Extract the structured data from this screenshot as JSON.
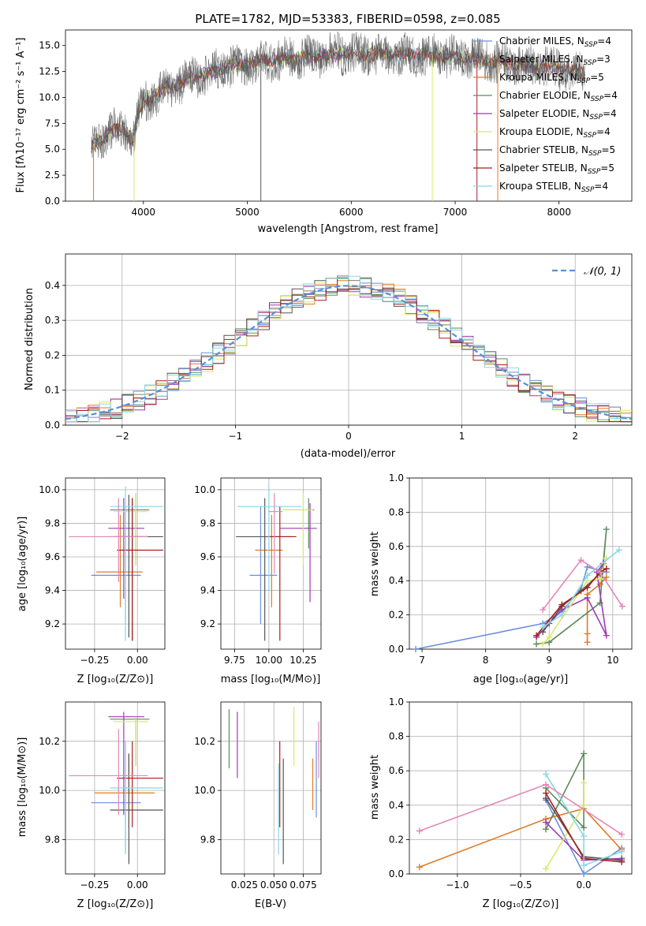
{
  "colors": {
    "cm": "#6a8fdc",
    "sm": "#7f7f7f",
    "km": "#e07b25",
    "ce": "#5c8a5c",
    "se": "#a13ab2",
    "ke": "#d8e96a",
    "cs": "#555555",
    "ss": "#a81f1f",
    "ks": "#87d7e6",
    "pink": "#e486b7"
  },
  "top": {
    "title": "PLATE=1782, MJD=53383, FIBERID=0598, z=0.085",
    "xlabel": "wavelength [Angstrom, rest frame]",
    "ylabel": "Flux [fλ10⁻¹⁷ erg cm⁻² s⁻¹ A⁻¹]",
    "legend": [
      "Chabrier MILES, N_SSP=4",
      "Salpeter MILES, N_SSP=3",
      "Kroupa MILES, N_SSP=5",
      "Chabrier ELODIE, N_SSP=4",
      "Salpeter ELODIE, N_SSP=4",
      "Kroupa ELODIE, N_SSP=4",
      "Chabrier STELIB, N_SSP=5",
      "Salpeter STELIB, N_SSP=5",
      "Kroupa STELIB, N_SSP=4"
    ]
  },
  "hist": {
    "xlabel": "(data-model)/error",
    "ylabel": "Normed distribution",
    "legend": "𝒩(0, 1)"
  },
  "panels": {
    "age_label": "age  [log₁₀(age/yr)]",
    "z_label": "Z [log₁₀(Z/Z⊙)]",
    "mass_label": "mass [log₁₀(M/M⊙)]",
    "ebv_label": "E(B-V)",
    "mw_label": "mass weight",
    "age_xlabel": "age  [log₁₀(age/yr)]"
  },
  "chart_data": [
    {
      "type": "line",
      "title": "PLATE=1782, MJD=53383, FIBERID=0598, z=0.085",
      "xlim": [
        3250,
        8700
      ],
      "ylim": [
        0,
        16.5
      ],
      "xticks": [
        4000,
        5000,
        6000,
        7000,
        8000
      ],
      "yticks": [
        0.0,
        2.5,
        5.0,
        7.5,
        10.0,
        12.5,
        15.0
      ],
      "continuum": {
        "x": [
          3500,
          3600,
          3700,
          3800,
          3900,
          3950,
          4000,
          4100,
          4300,
          4500,
          4800,
          5000,
          5200,
          5500,
          5800,
          6000,
          6300,
          6600,
          6900,
          7200,
          7500,
          7800,
          8100,
          8250
        ],
        "y": [
          5.2,
          6.0,
          6.8,
          7.0,
          5.8,
          8.5,
          9.5,
          10.2,
          11.2,
          12.0,
          12.9,
          13.3,
          13.6,
          13.8,
          14.1,
          14.2,
          14.2,
          14.1,
          14.0,
          13.7,
          13.3,
          13.0,
          12.7,
          12.3
        ]
      }
    },
    {
      "type": "bar",
      "title": "",
      "xlim": [
        -2.5,
        2.5
      ],
      "ylim": [
        0,
        0.49
      ],
      "xticks": [
        -2,
        -1,
        0,
        1,
        2
      ],
      "yticks": [
        0.0,
        0.1,
        0.2,
        0.3,
        0.4
      ],
      "gaussian": {
        "mean": 0,
        "sigma": 1
      }
    },
    {
      "type": "scatter",
      "title": "",
      "xlim": [
        -0.42,
        0.16
      ],
      "ylim": [
        9.05,
        10.07
      ],
      "xticks": [
        -0.25,
        0.0
      ],
      "yticks": [
        9.2,
        9.4,
        9.6,
        9.8,
        10.0
      ],
      "points": [
        {
          "c": "cm",
          "x": -0.07,
          "y": 9.49,
          "ex": [
            -0.27,
            0.02
          ],
          "ey": [
            9.2,
            9.9
          ]
        },
        {
          "c": "sm",
          "x": -0.03,
          "y": 9.72,
          "ex": [
            -0.13,
            0.06
          ],
          "ey": [
            9.1,
            9.95
          ]
        },
        {
          "c": "km",
          "x": -0.1,
          "y": 9.51,
          "ex": [
            -0.24,
            0.03
          ],
          "ey": [
            9.3,
            9.85
          ]
        },
        {
          "c": "ce",
          "x": -0.01,
          "y": 9.88,
          "ex": [
            -0.16,
            0.07
          ],
          "ey": [
            9.55,
            9.98
          ]
        },
        {
          "c": "se",
          "x": -0.08,
          "y": 9.77,
          "ex": [
            -0.17,
            0.04
          ],
          "ey": [
            9.35,
            9.95
          ]
        },
        {
          "c": "ke",
          "x": -0.01,
          "y": 9.87,
          "ex": [
            -0.14,
            0.06
          ],
          "ey": [
            9.55,
            9.98
          ]
        },
        {
          "c": "cs",
          "x": -0.05,
          "y": 9.72,
          "ex": [
            -0.16,
            0.15
          ],
          "ey": [
            9.12,
            9.97
          ]
        },
        {
          "c": "ss",
          "x": -0.03,
          "y": 9.64,
          "ex": [
            -0.12,
            0.15
          ],
          "ey": [
            9.1,
            9.95
          ]
        },
        {
          "c": "ks",
          "x": -0.07,
          "y": 9.9,
          "ex": [
            -0.16,
            0.15
          ],
          "ey": [
            9.1,
            10.02
          ]
        },
        {
          "c": "pink",
          "x": -0.11,
          "y": 9.72,
          "ex": [
            -0.4,
            0.06
          ],
          "ey": [
            9.45,
            9.95
          ]
        }
      ]
    },
    {
      "type": "scatter",
      "title": "",
      "xlim": [
        9.65,
        10.38
      ],
      "ylim": [
        9.05,
        10.07
      ],
      "xticks": [
        9.75,
        10.0,
        10.25
      ],
      "yticks": [
        9.2,
        9.4,
        9.6,
        9.8,
        10.0
      ],
      "points": [
        {
          "c": "cm",
          "x": 9.94,
          "y": 9.49,
          "ex": [
            9.86,
            10.06
          ],
          "ey": [
            9.2,
            9.9
          ]
        },
        {
          "c": "km",
          "x": 10.02,
          "y": 9.64,
          "ex": [
            9.9,
            10.1
          ],
          "ey": [
            9.3,
            9.85
          ]
        },
        {
          "c": "ce",
          "x": 10.29,
          "y": 9.88,
          "ex": [
            10.12,
            10.33
          ],
          "ey": [
            9.65,
            9.95
          ]
        },
        {
          "c": "se",
          "x": 10.3,
          "y": 9.77,
          "ex": [
            10.08,
            10.35
          ],
          "ey": [
            9.33,
            9.92
          ]
        },
        {
          "c": "ke",
          "x": 10.25,
          "y": 9.88,
          "ex": [
            10.1,
            10.32
          ],
          "ey": [
            9.55,
            9.98
          ]
        },
        {
          "c": "cs",
          "x": 9.97,
          "y": 9.72,
          "ex": [
            9.76,
            10.17
          ],
          "ey": [
            9.1,
            9.95
          ]
        },
        {
          "c": "ss",
          "x": 10.08,
          "y": 9.72,
          "ex": [
            10.0,
            10.2
          ],
          "ey": [
            9.1,
            9.9
          ]
        },
        {
          "c": "ks",
          "x": 10.0,
          "y": 9.9,
          "ex": [
            9.77,
            10.24
          ],
          "ey": [
            9.4,
            10.02
          ]
        },
        {
          "c": "pink",
          "x": 10.04,
          "y": 9.87,
          "ex": [
            10.0,
            10.1
          ],
          "ey": [
            9.5,
            9.98
          ]
        }
      ]
    },
    {
      "type": "line",
      "title": "",
      "xlim": [
        6.8,
        10.3
      ],
      "ylim": [
        0,
        1.0
      ],
      "xticks": [
        7,
        8,
        9,
        10
      ],
      "yticks": [
        0.0,
        0.2,
        0.4,
        0.6,
        0.8,
        1.0
      ],
      "series": [
        {
          "c": "cm",
          "x": [
            6.9,
            8.9,
            9.2,
            9.5,
            9.6,
            9.9
          ],
          "y": [
            0.0,
            0.15,
            0.22,
            0.35,
            0.48,
            0.45
          ]
        },
        {
          "c": "km",
          "x": [
            9.6,
            9.6,
            9.6,
            9.8,
            9.9
          ],
          "y": [
            0.04,
            0.09,
            0.32,
            0.38,
            0.42
          ]
        },
        {
          "c": "ce",
          "x": [
            8.8,
            9.0,
            9.8,
            9.9,
            9.85,
            9.8
          ],
          "y": [
            0.03,
            0.04,
            0.27,
            0.7,
            0.5,
            0.45
          ]
        },
        {
          "c": "se",
          "x": [
            8.8,
            9.0,
            9.2,
            9.6,
            9.9,
            9.75,
            9.85
          ],
          "y": [
            0.07,
            0.15,
            0.23,
            0.3,
            0.08,
            0.45,
            0.5
          ]
        },
        {
          "c": "ke",
          "x": [
            8.9,
            9.0,
            9.6,
            9.8,
            9.9
          ],
          "y": [
            0.03,
            0.07,
            0.4,
            0.41,
            0.53
          ]
        },
        {
          "c": "cs",
          "x": [
            8.9,
            9.2,
            9.5,
            9.8
          ],
          "y": [
            0.1,
            0.25,
            0.34,
            0.44
          ]
        },
        {
          "c": "ss",
          "x": [
            8.8,
            9.2,
            9.6,
            9.8,
            9.9
          ],
          "y": [
            0.08,
            0.26,
            0.36,
            0.45,
            0.47
          ]
        },
        {
          "c": "ks",
          "x": [
            8.9,
            9.2,
            9.6,
            10.1
          ],
          "y": [
            0.13,
            0.2,
            0.43,
            0.58
          ]
        },
        {
          "c": "pink",
          "x": [
            8.9,
            9.5,
            9.8,
            10.15
          ],
          "y": [
            0.23,
            0.52,
            0.45,
            0.25
          ]
        }
      ]
    },
    {
      "type": "scatter",
      "title": "",
      "xlim": [
        -0.42,
        0.16
      ],
      "ylim": [
        9.66,
        10.36
      ],
      "xticks": [
        -0.25,
        0.0
      ],
      "yticks": [
        9.8,
        10.0,
        10.2
      ],
      "points": [
        {
          "c": "cm",
          "x": -0.07,
          "y": 9.95,
          "ex": [
            -0.27,
            0.02
          ],
          "ey": [
            9.75,
            10.2
          ]
        },
        {
          "c": "km",
          "x": -0.05,
          "y": 9.99,
          "ex": [
            -0.25,
            0.1
          ],
          "ey": [
            9.85,
            10.15
          ]
        },
        {
          "c": "ce",
          "x": -0.01,
          "y": 10.29,
          "ex": [
            -0.16,
            0.07
          ],
          "ey": [
            10.1,
            10.3
          ]
        },
        {
          "c": "se",
          "x": -0.08,
          "y": 10.3,
          "ex": [
            -0.17,
            0.04
          ],
          "ey": [
            9.9,
            10.32
          ]
        },
        {
          "c": "ke",
          "x": -0.01,
          "y": 10.28,
          "ex": [
            -0.14,
            0.06
          ],
          "ey": [
            10.1,
            10.3
          ]
        },
        {
          "c": "cs",
          "x": -0.05,
          "y": 9.92,
          "ex": [
            -0.16,
            0.15
          ],
          "ey": [
            9.7,
            10.15
          ]
        },
        {
          "c": "ss",
          "x": -0.03,
          "y": 10.05,
          "ex": [
            -0.12,
            0.15
          ],
          "ey": [
            9.85,
            10.2
          ]
        },
        {
          "c": "ks",
          "x": -0.07,
          "y": 10.01,
          "ex": [
            -0.16,
            0.15
          ],
          "ey": [
            9.74,
            10.2
          ]
        },
        {
          "c": "pink",
          "x": -0.11,
          "y": 10.06,
          "ex": [
            -0.4,
            0.06
          ],
          "ey": [
            9.9,
            10.25
          ]
        }
      ]
    },
    {
      "type": "scatter",
      "title": "",
      "xlim": [
        0.005,
        0.09
      ],
      "ylim": [
        9.66,
        10.36
      ],
      "xticks": [
        0.025,
        0.05,
        0.075
      ],
      "yticks": [
        9.8,
        10.0,
        10.2
      ],
      "points": [
        {
          "c": "ce",
          "x": 0.012,
          "y": 10.2,
          "ey": [
            10.09,
            10.33
          ]
        },
        {
          "c": "se",
          "x": 0.019,
          "y": 10.18,
          "ey": [
            10.05,
            10.32
          ]
        },
        {
          "c": "ks",
          "x": 0.054,
          "y": 9.9,
          "ey": [
            9.74,
            10.11
          ]
        },
        {
          "c": "ss",
          "x": 0.055,
          "y": 10.0,
          "ey": [
            9.85,
            10.2
          ]
        },
        {
          "c": "cs",
          "x": 0.058,
          "y": 9.9,
          "ey": [
            9.7,
            10.13
          ]
        },
        {
          "c": "ke",
          "x": 0.067,
          "y": 10.22,
          "ey": [
            10.1,
            10.34
          ]
        },
        {
          "c": "km",
          "x": 0.083,
          "y": 10.02,
          "ey": [
            9.92,
            10.13
          ]
        },
        {
          "c": "cm",
          "x": 0.086,
          "y": 10.0,
          "ey": [
            9.89,
            10.2
          ]
        },
        {
          "c": "pink",
          "x": 0.088,
          "y": 10.15,
          "ey": [
            10.05,
            10.28
          ]
        }
      ]
    },
    {
      "type": "line",
      "title": "",
      "xlim": [
        -1.38,
        0.38
      ],
      "ylim": [
        0,
        1.0
      ],
      "xticks": [
        -1.0,
        -0.5,
        0.0
      ],
      "yticks": [
        0.0,
        0.2,
        0.4,
        0.6,
        0.8,
        1.0
      ],
      "series": [
        {
          "c": "cm",
          "x": [
            -0.3,
            0.0,
            0.3
          ],
          "y": [
            0.43,
            0.0,
            0.15
          ]
        },
        {
          "c": "km",
          "x": [
            -1.3,
            -0.3,
            0.0,
            0.3
          ],
          "y": [
            0.04,
            0.32,
            0.38,
            0.14
          ]
        },
        {
          "c": "ce",
          "x": [
            -0.3,
            0.0,
            0.0,
            -0.3
          ],
          "y": [
            0.26,
            0.7,
            0.27,
            0.5
          ]
        },
        {
          "c": "se",
          "x": [
            -0.3,
            0.0,
            0.3
          ],
          "y": [
            0.3,
            0.08,
            0.09
          ]
        },
        {
          "c": "ke",
          "x": [
            -0.3,
            0.0,
            0.0
          ],
          "y": [
            0.03,
            0.4,
            0.53
          ]
        },
        {
          "c": "cs",
          "x": [
            -0.3,
            0.0,
            0.3
          ],
          "y": [
            0.44,
            0.1,
            0.08
          ]
        },
        {
          "c": "ss",
          "x": [
            -0.3,
            0.0,
            0.3
          ],
          "y": [
            0.47,
            0.09,
            0.07
          ]
        },
        {
          "c": "ks",
          "x": [
            -0.3,
            0.0,
            0.0,
            0.3
          ],
          "y": [
            0.58,
            0.22,
            0.05,
            0.13
          ]
        },
        {
          "c": "pink",
          "x": [
            -1.3,
            -0.3,
            0.3
          ],
          "y": [
            0.25,
            0.52,
            0.23
          ]
        }
      ]
    }
  ]
}
